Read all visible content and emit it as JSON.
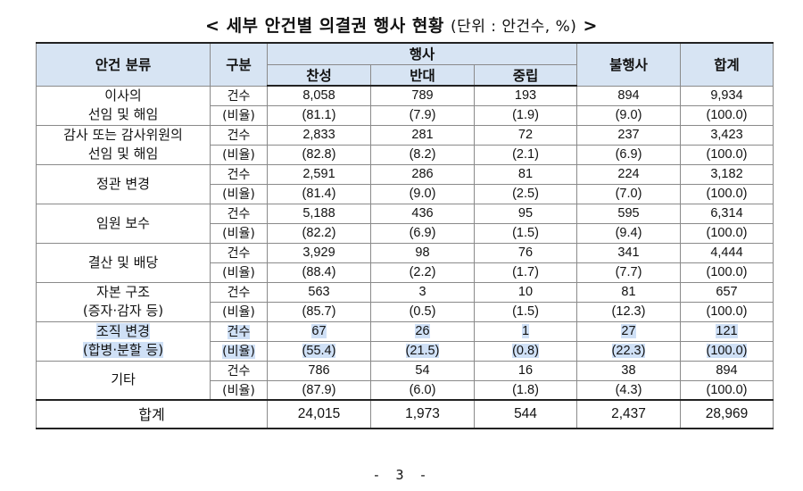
{
  "title": {
    "main": "< 세부 안건별 의결권 행사 현황",
    "unit": "(단위 : 안건수, %)",
    "suffix": ">"
  },
  "headers": {
    "category": "안건 분류",
    "type": "구분",
    "exercise": "행사",
    "for": "찬성",
    "against": "반대",
    "neutral": "중립",
    "non_exercise": "불행사",
    "total": "합계"
  },
  "rows": [
    {
      "category_line1": "이사의",
      "category_line2": "선임 및 해임",
      "count": {
        "label": "건수",
        "for": "8,058",
        "against": "789",
        "neutral": "193",
        "non": "894",
        "total": "9,934"
      },
      "ratio": {
        "label": "(비율)",
        "for": "(81.1)",
        "against": "(7.9)",
        "neutral": "(1.9)",
        "non": "(9.0)",
        "total": "(100.0)"
      }
    },
    {
      "category_line1": "감사 또는 감사위원의",
      "category_line2": "선임 및 해임",
      "count": {
        "label": "건수",
        "for": "2,833",
        "against": "281",
        "neutral": "72",
        "non": "237",
        "total": "3,423"
      },
      "ratio": {
        "label": "(비율)",
        "for": "(82.8)",
        "against": "(8.2)",
        "neutral": "(2.1)",
        "non": "(6.9)",
        "total": "(100.0)"
      }
    },
    {
      "category_line1": "정관 변경",
      "category_line2": "",
      "count": {
        "label": "건수",
        "for": "2,591",
        "against": "286",
        "neutral": "81",
        "non": "224",
        "total": "3,182"
      },
      "ratio": {
        "label": "(비율)",
        "for": "(81.4)",
        "against": "(9.0)",
        "neutral": "(2.5)",
        "non": "(7.0)",
        "total": "(100.0)"
      }
    },
    {
      "category_line1": "임원 보수",
      "category_line2": "",
      "count": {
        "label": "건수",
        "for": "5,188",
        "against": "436",
        "neutral": "95",
        "non": "595",
        "total": "6,314"
      },
      "ratio": {
        "label": "(비율)",
        "for": "(82.2)",
        "against": "(6.9)",
        "neutral": "(1.5)",
        "non": "(9.4)",
        "total": "(100.0)"
      }
    },
    {
      "category_line1": "결산 및 배당",
      "category_line2": "",
      "count": {
        "label": "건수",
        "for": "3,929",
        "against": "98",
        "neutral": "76",
        "non": "341",
        "total": "4,444"
      },
      "ratio": {
        "label": "(비율)",
        "for": "(88.4)",
        "against": "(2.2)",
        "neutral": "(1.7)",
        "non": "(7.7)",
        "total": "(100.0)"
      }
    },
    {
      "category_line1": "자본 구조",
      "category_line2": "(증자·감자 등)",
      "count": {
        "label": "건수",
        "for": "563",
        "against": "3",
        "neutral": "10",
        "non": "81",
        "total": "657"
      },
      "ratio": {
        "label": "(비율)",
        "for": "(85.7)",
        "against": "(0.5)",
        "neutral": "(1.5)",
        "non": "(12.3)",
        "total": "(100.0)"
      }
    },
    {
      "category_line1": "조직 변경",
      "category_line2": "(합병·분할 등)",
      "count": {
        "label": "건수",
        "for": "67",
        "against": "26",
        "neutral": "1",
        "non": "27",
        "total": "121"
      },
      "ratio": {
        "label": "(비율)",
        "for": "(55.4)",
        "against": "(21.5)",
        "neutral": "(0.8)",
        "non": "(22.3)",
        "total": "(100.0)"
      }
    },
    {
      "category_line1": "기타",
      "category_line2": "",
      "count": {
        "label": "건수",
        "for": "786",
        "against": "54",
        "neutral": "16",
        "non": "38",
        "total": "894"
      },
      "ratio": {
        "label": "(비율)",
        "for": "(87.9)",
        "against": "(6.0)",
        "neutral": "(1.8)",
        "non": "(4.3)",
        "total": "(100.0)"
      }
    }
  ],
  "total_row": {
    "label": "합계",
    "for": "24,015",
    "against": "1,973",
    "neutral": "544",
    "non": "2,437",
    "total": "28,969"
  },
  "page_number": "- 3 -",
  "colors": {
    "header_bg": "#d7e4f3",
    "highlight": "#cfe0f6"
  }
}
